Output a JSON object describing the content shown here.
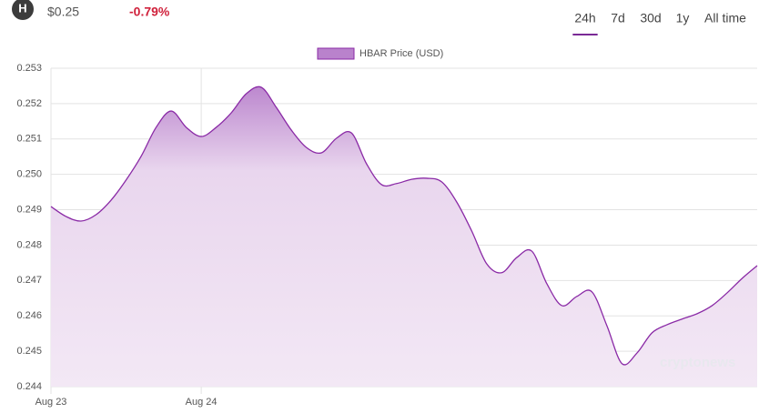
{
  "header": {
    "icon": "H",
    "price": "$0.25",
    "change": "-0.79%"
  },
  "tabs": [
    "24h",
    "7d",
    "30d",
    "1y",
    "All time"
  ],
  "active_tab": 0,
  "watermark": "cryptonews",
  "chart_data": {
    "type": "line",
    "categories": [
      "Aug 23",
      null,
      null,
      null,
      null,
      null,
      null,
      null,
      null,
      null,
      "Aug 24",
      null,
      null,
      null,
      null,
      null,
      null,
      null,
      null,
      null,
      null,
      null,
      null,
      null,
      null,
      null,
      null,
      null,
      null,
      null,
      null,
      null,
      null,
      null,
      null,
      null,
      null,
      null,
      null,
      null,
      null,
      null,
      null,
      null,
      null,
      null,
      null,
      null
    ],
    "series": [
      {
        "name": "HBAR Price (USD)",
        "color": "#8a2aa6",
        "fill": "#b982cc",
        "values": [
          0.24909,
          0.24881,
          0.24868,
          0.24886,
          0.24927,
          0.24984,
          0.25051,
          0.25133,
          0.25179,
          0.25133,
          0.25107,
          0.25133,
          0.25174,
          0.25228,
          0.25246,
          0.25189,
          0.25125,
          0.25076,
          0.25061,
          0.25102,
          0.25117,
          0.2503,
          0.24971,
          0.24974,
          0.24986,
          0.24989,
          0.24979,
          0.24922,
          0.2484,
          0.24747,
          0.24722,
          0.24765,
          0.24783,
          0.24691,
          0.24629,
          0.24655,
          0.24668,
          0.24572,
          0.24465,
          0.24495,
          0.24552,
          0.24575,
          0.24591,
          0.24606,
          0.24629,
          0.24665,
          0.24706,
          0.24742
        ]
      }
    ],
    "ylim": [
      0.244,
      0.253
    ],
    "yticks": [
      0.244,
      0.245,
      0.246,
      0.247,
      0.248,
      0.249,
      {
        "value": 0.25,
        "label": "0.250"
      },
      0.251,
      0.252,
      0.253
    ],
    "grid": true,
    "legend": "top"
  }
}
